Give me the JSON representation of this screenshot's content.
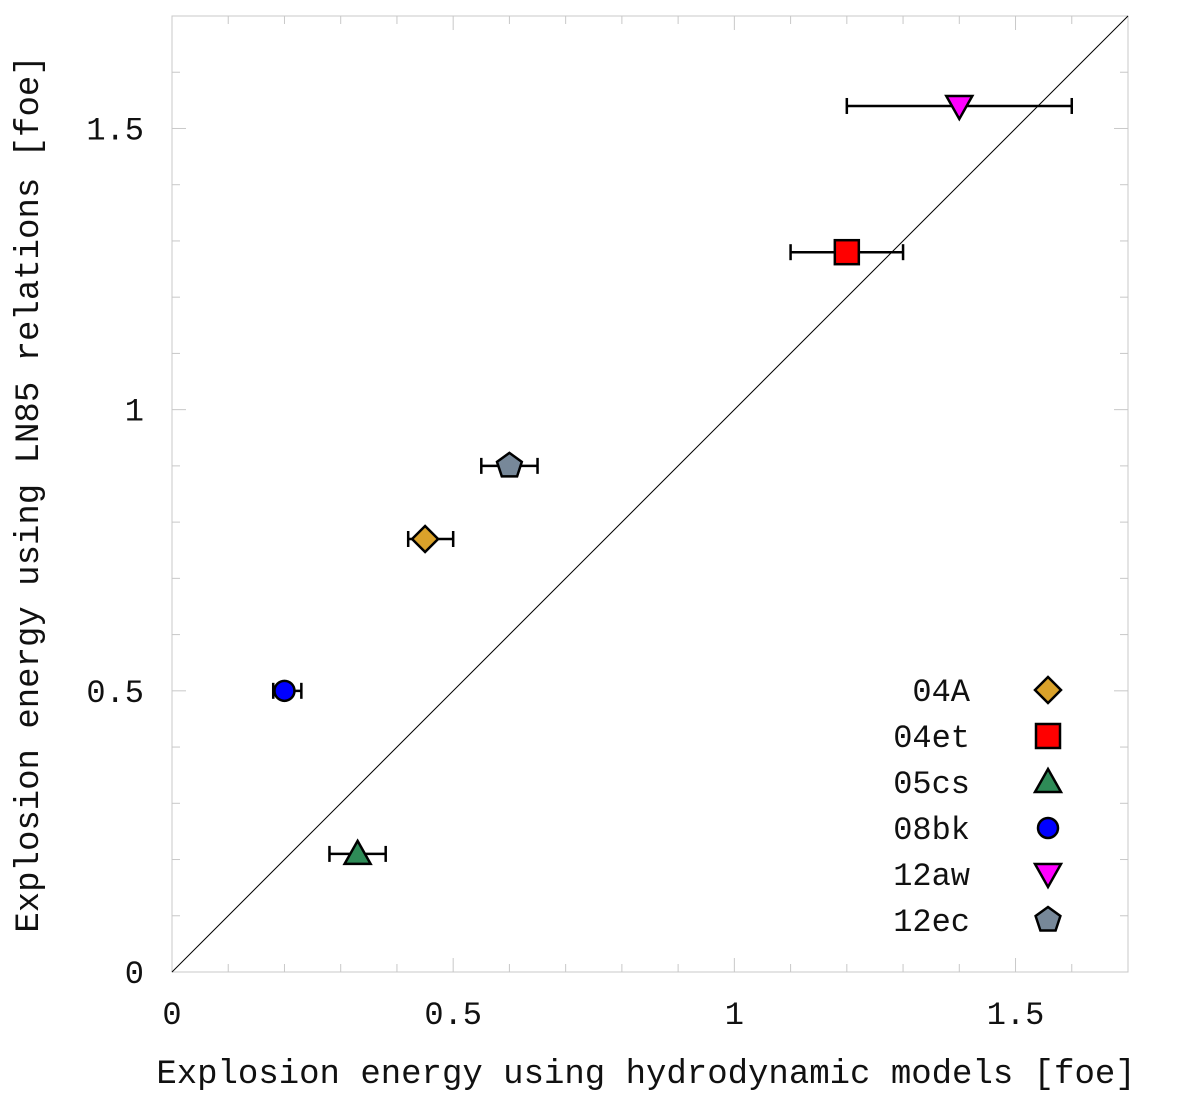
{
  "chart_data": {
    "type": "scatter",
    "title": "",
    "xlabel": "Explosion energy using hydrodynamic models [foe]",
    "ylabel": "Explosion energy using LN85 relations [foe]",
    "xlim": [
      0,
      1.7
    ],
    "ylim": [
      0,
      1.7
    ],
    "x_ticks": [
      {
        "value": 0,
        "label": "0"
      },
      {
        "value": 0.5,
        "label": "0.5"
      },
      {
        "value": 1,
        "label": "1"
      },
      {
        "value": 1.5,
        "label": "1.5"
      }
    ],
    "y_ticks": [
      {
        "value": 0,
        "label": "0"
      },
      {
        "value": 0.5,
        "label": "0.5"
      },
      {
        "value": 1,
        "label": "1"
      },
      {
        "value": 1.5,
        "label": "1.5"
      }
    ],
    "minor_tick_step": 0.1,
    "grid": false,
    "reference_line": "y = x",
    "legend_position": "bottom-right",
    "series": [
      {
        "name": "04A",
        "x": 0.45,
        "y": 0.77,
        "x_err": [
          0.03,
          0.05
        ],
        "marker": "diamond",
        "color": "#DAA22A"
      },
      {
        "name": "04et",
        "x": 1.2,
        "y": 1.28,
        "x_err": [
          0.1,
          0.1
        ],
        "marker": "square",
        "color": "#FF0000"
      },
      {
        "name": "05cs",
        "x": 0.33,
        "y": 0.21,
        "x_err": [
          0.05,
          0.05
        ],
        "marker": "triangle-up",
        "color": "#2E8B57"
      },
      {
        "name": "08bk",
        "x": 0.2,
        "y": 0.5,
        "x_err": [
          0.02,
          0.03
        ],
        "marker": "circle",
        "color": "#0000FF"
      },
      {
        "name": "12aw",
        "x": 1.4,
        "y": 1.54,
        "x_err": [
          0.2,
          0.2
        ],
        "marker": "triangle-down",
        "color": "#FF00FF"
      },
      {
        "name": "12ec",
        "x": 0.6,
        "y": 0.9,
        "x_err": [
          0.05,
          0.05
        ],
        "marker": "pentagon",
        "color": "#778899"
      }
    ]
  }
}
